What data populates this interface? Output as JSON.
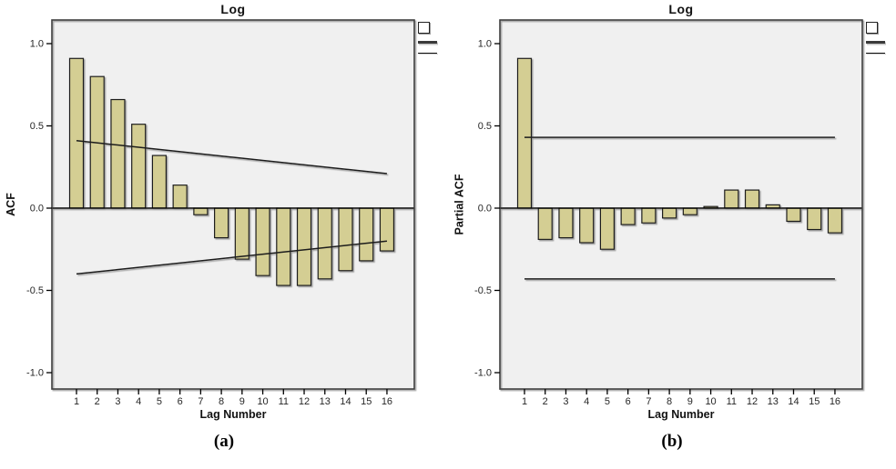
{
  "page": {
    "background": "#ffffff"
  },
  "colors": {
    "bar_fill": "#d4ce93",
    "bar_border": "#1f1f1f",
    "plot_background": "#f0f0f0",
    "plot_border": "#3e3e3e",
    "reference_line": "#1a1a1a",
    "tick_text": "#262626"
  },
  "chart_data": [
    {
      "type": "bar",
      "title": "Log",
      "ylabel": "ACF",
      "xlabel": "Lag Number",
      "caption": "(a)",
      "categories": [
        "1",
        "2",
        "3",
        "4",
        "5",
        "6",
        "7",
        "8",
        "9",
        "10",
        "11",
        "12",
        "13",
        "14",
        "15",
        "16"
      ],
      "values": [
        0.91,
        0.8,
        0.66,
        0.51,
        0.32,
        0.14,
        -0.04,
        -0.18,
        -0.31,
        -0.41,
        -0.47,
        -0.47,
        -0.43,
        -0.38,
        -0.32,
        -0.26
      ],
      "yticks": [
        "1.0",
        "0.5",
        "0.0",
        "-0.5",
        "-1.0"
      ],
      "ylim": [
        -1.15,
        1.15
      ],
      "grid": false,
      "legend_position": "top-right-outside",
      "legend": [
        {
          "icon": "coefficient-swatch"
        },
        {
          "icon": "upper-confidence-limit-line"
        },
        {
          "icon": "lower-confidence-limit-line"
        }
      ],
      "confidence_limits": {
        "upper_start": 0.41,
        "upper_end": 0.21,
        "lower_start": -0.4,
        "lower_end": -0.2
      }
    },
    {
      "type": "bar",
      "title": "Log",
      "ylabel": "Partial ACF",
      "xlabel": "Lag Number",
      "caption": "(b)",
      "categories": [
        "1",
        "2",
        "3",
        "4",
        "5",
        "6",
        "7",
        "8",
        "9",
        "10",
        "11",
        "12",
        "13",
        "14",
        "15",
        "16"
      ],
      "values": [
        0.91,
        -0.19,
        -0.18,
        -0.21,
        -0.25,
        -0.1,
        -0.09,
        -0.06,
        -0.04,
        0.01,
        0.11,
        0.11,
        0.02,
        -0.08,
        -0.13,
        -0.15
      ],
      "yticks": [
        "1.0",
        "0.5",
        "0.0",
        "-0.5",
        "-1.0"
      ],
      "ylim": [
        -1.15,
        1.15
      ],
      "grid": false,
      "legend_position": "top-right-outside",
      "legend": [
        {
          "icon": "coefficient-swatch"
        },
        {
          "icon": "upper-confidence-limit-line"
        },
        {
          "icon": "lower-confidence-limit-line"
        }
      ],
      "confidence_limits": {
        "upper_start": 0.43,
        "upper_end": 0.43,
        "lower_start": -0.43,
        "lower_end": -0.43
      }
    }
  ]
}
